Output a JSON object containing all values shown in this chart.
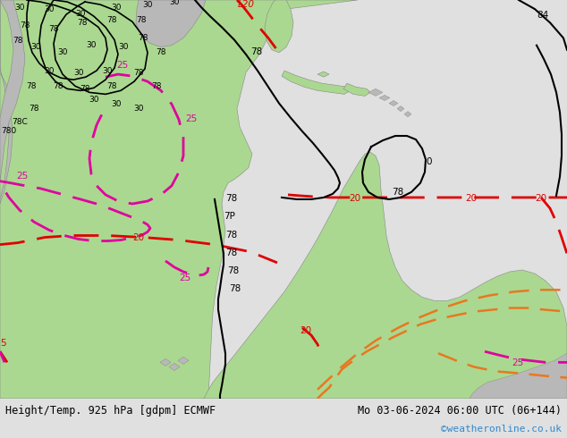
{
  "title_left": "Height/Temp. 925 hPa [gdpm] ECMWF",
  "title_right": "Mo 03-06-2024 06:00 UTC (06+144)",
  "credit": "©weatheronline.co.uk",
  "bg_color": "#e0e0e0",
  "map_bg": "#dcdcdc",
  "ocean_color": "#dcdcdc",
  "land_green": "#aad890",
  "land_gray": "#b8b8b8",
  "contour_black": "#000000",
  "contour_red_dashed": "#e00000",
  "contour_magenta_dashed": "#e000a0",
  "contour_orange_dashed": "#e87820",
  "label_red": "#e00000",
  "label_magenta": "#e000a0",
  "label_black": "#000000",
  "credit_color": "#3388cc",
  "bottom_bar_color": "#d0d0d0",
  "figsize": [
    6.34,
    4.9
  ],
  "dpi": 100
}
